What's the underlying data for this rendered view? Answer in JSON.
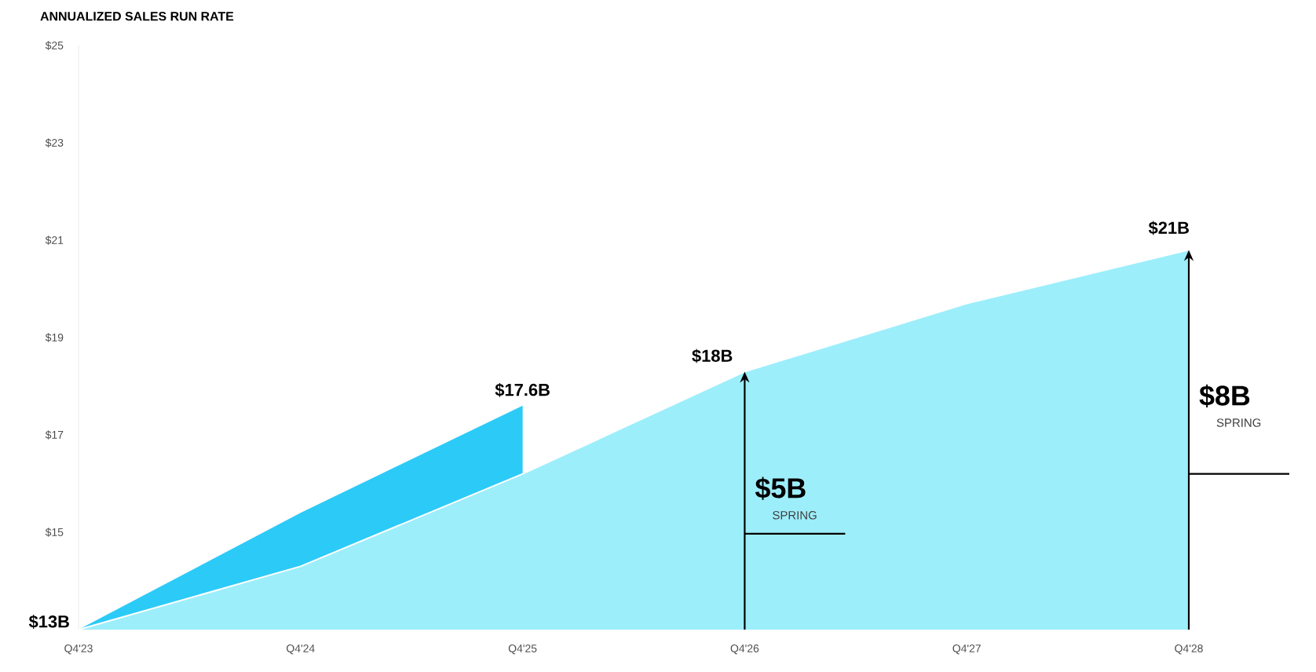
{
  "chart_data": {
    "type": "area",
    "title": "ANNUALIZED SALES RUN RATE",
    "categories": [
      "Q4'23",
      "Q4'24",
      "Q4'25",
      "Q4'26",
      "Q4'27",
      "Q4'28"
    ],
    "series": [
      {
        "color": "#2ccaf7",
        "values": [
          13,
          15.4,
          17.6,
          null,
          null,
          null
        ]
      },
      {
        "color": "#9deefb",
        "values": [
          13,
          14.3,
          16.2,
          18.3,
          19.7,
          20.8
        ]
      }
    ],
    "ylim": [
      13,
      25
    ],
    "yticks": [
      {
        "value": 15,
        "label": "$15"
      },
      {
        "value": 17,
        "label": "$17"
      },
      {
        "value": 19,
        "label": "$19"
      },
      {
        "value": 21,
        "label": "$21"
      },
      {
        "value": 23,
        "label": "$23"
      },
      {
        "value": 25,
        "label": "$25"
      }
    ],
    "grid": false,
    "annotations": [
      {
        "text": "$13B",
        "x": "Q4'23",
        "y": 13
      },
      {
        "text": "$17.6B",
        "x": "Q4'25",
        "y": 17.6
      },
      {
        "text": "$18B",
        "x": "Q4'26",
        "y": 18.3
      },
      {
        "text": "$21B",
        "x": "Q4'28",
        "y": 20.8
      },
      "$5B",
      "SPRING",
      "$8B",
      "SPRING"
    ]
  }
}
